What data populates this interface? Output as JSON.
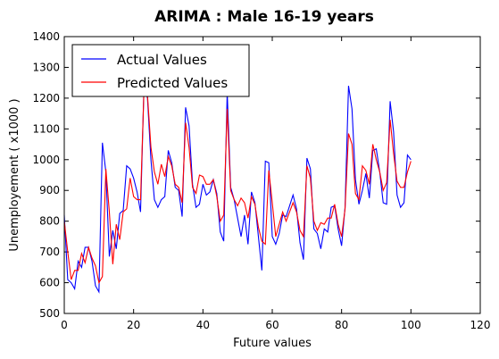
{
  "chart_data": {
    "type": "line",
    "title": "ARIMA : Male 16-19 years",
    "xlabel": "Future values",
    "ylabel": "Unemployement ( x1000 )",
    "x": [
      0,
      1,
      2,
      3,
      4,
      5,
      6,
      7,
      8,
      9,
      10,
      11,
      12,
      13,
      14,
      15,
      16,
      17,
      18,
      19,
      20,
      21,
      22,
      23,
      24,
      25,
      26,
      27,
      28,
      29,
      30,
      31,
      32,
      33,
      34,
      35,
      36,
      37,
      38,
      39,
      40,
      41,
      42,
      43,
      44,
      45,
      46,
      47,
      48,
      49,
      50,
      51,
      52,
      53,
      54,
      55,
      56,
      57,
      58,
      59,
      60,
      61,
      62,
      63,
      64,
      65,
      66,
      67,
      68,
      69,
      70,
      71,
      72,
      73,
      74,
      75,
      76,
      77,
      78,
      79,
      80,
      81,
      82,
      83,
      84,
      85,
      86,
      87,
      88,
      89,
      90,
      91,
      92,
      93,
      94,
      95,
      96,
      97,
      98,
      99,
      100
    ],
    "series": [
      {
        "name": "Actual Values",
        "color": "#0000ff",
        "values": [
          820,
          610,
          600,
          580,
          670,
          650,
          715,
          715,
          670,
          590,
          570,
          1055,
          960,
          685,
          770,
          710,
          825,
          835,
          980,
          970,
          940,
          895,
          830,
          1240,
          1200,
          1000,
          870,
          845,
          870,
          880,
          1030,
          990,
          910,
          900,
          815,
          1170,
          1110,
          920,
          845,
          855,
          920,
          885,
          895,
          935,
          890,
          765,
          735,
          1220,
          910,
          870,
          810,
          750,
          820,
          725,
          895,
          860,
          750,
          640,
          995,
          990,
          750,
          725,
          760,
          820,
          815,
          850,
          885,
          840,
          730,
          675,
          1005,
          970,
          775,
          760,
          710,
          775,
          765,
          845,
          850,
          775,
          720,
          845,
          1240,
          1165,
          935,
          855,
          900,
          955,
          875,
          1030,
          1035,
          960,
          860,
          855,
          1190,
          1090,
          885,
          845,
          860,
          1015,
          1000
        ]
      },
      {
        "name": "Predicted Values",
        "color": "#ff0000",
        "values": [
          800,
          700,
          610,
          640,
          640,
          695,
          665,
          715,
          680,
          655,
          600,
          620,
          970,
          830,
          660,
          790,
          740,
          830,
          840,
          940,
          880,
          870,
          870,
          1230,
          1210,
          1040,
          960,
          920,
          985,
          945,
          1010,
          980,
          920,
          910,
          860,
          1120,
          1040,
          910,
          890,
          950,
          945,
          920,
          920,
          935,
          880,
          800,
          820,
          1165,
          900,
          870,
          850,
          875,
          860,
          810,
          880,
          855,
          780,
          735,
          725,
          965,
          860,
          750,
          790,
          830,
          800,
          830,
          860,
          830,
          770,
          750,
          980,
          940,
          800,
          770,
          795,
          790,
          810,
          810,
          855,
          790,
          750,
          840,
          1085,
          1050,
          890,
          870,
          980,
          965,
          920,
          1050,
          1000,
          960,
          900,
          925,
          1130,
          1020,
          930,
          910,
          910,
          960,
          995
        ]
      }
    ],
    "xlim": [
      0,
      120
    ],
    "xticks": [
      0,
      20,
      40,
      60,
      80,
      100,
      120
    ],
    "ylim": [
      500,
      1400
    ],
    "yticks": [
      500,
      600,
      700,
      800,
      900,
      1000,
      1100,
      1200,
      1300,
      1400
    ],
    "legend": "upper left"
  }
}
